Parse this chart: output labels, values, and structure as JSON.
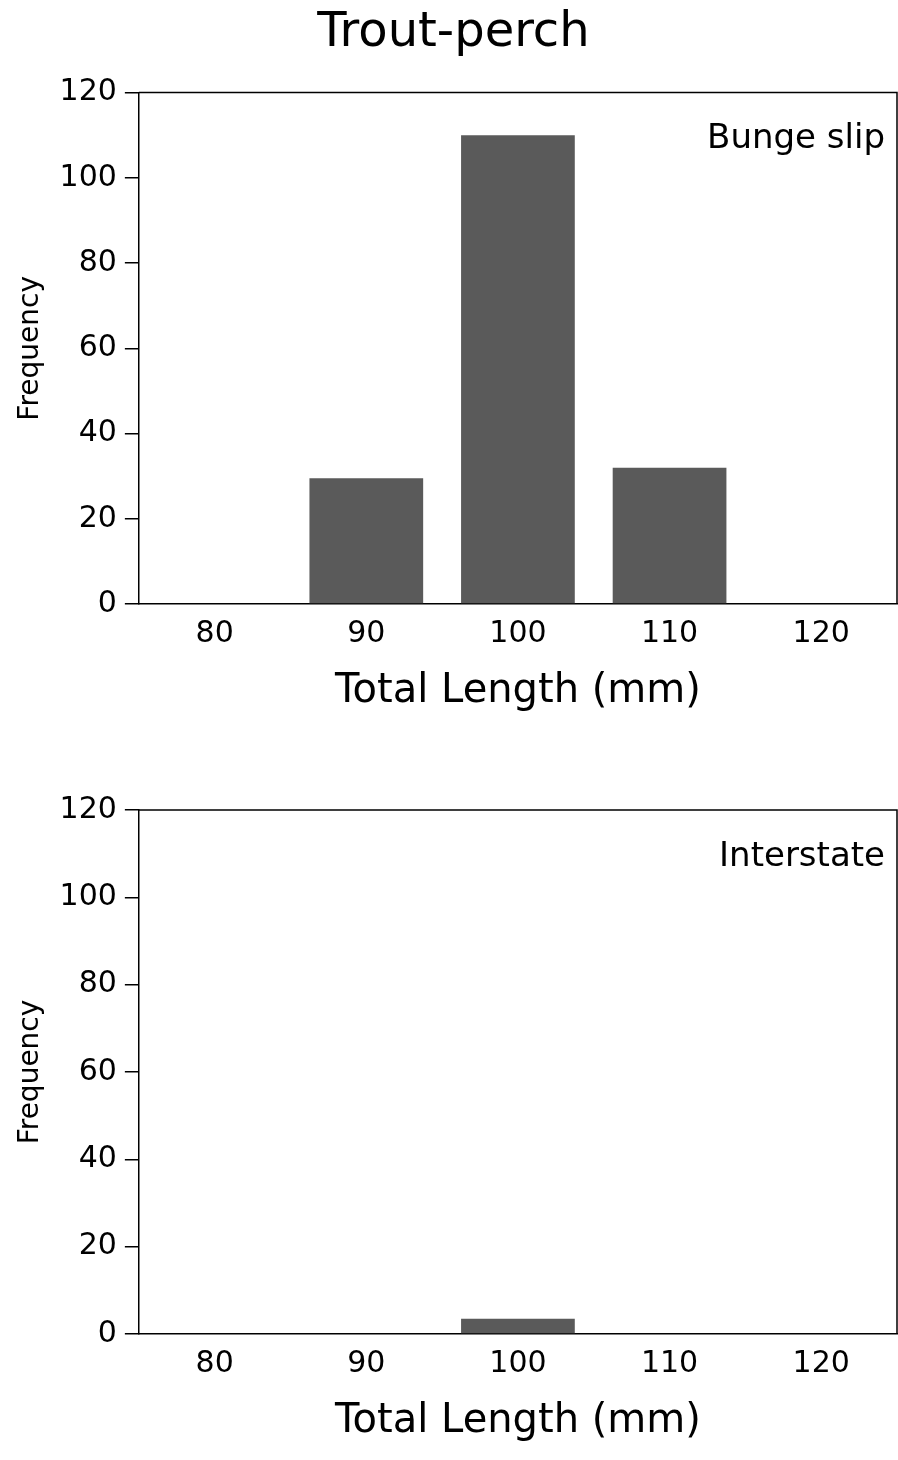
{
  "chart_data": [
    {
      "type": "bar",
      "title": "Trout-perch",
      "xlabel": "Total Length (mm)",
      "ylabel": "Frequency",
      "annotations": [
        "Bunge slip"
      ],
      "categories": [
        "80",
        "90",
        "100",
        "110",
        "120"
      ],
      "values": [
        0,
        29.5,
        110,
        32,
        0
      ],
      "color": "#5a5a5a",
      "ylim": [
        0,
        120
      ],
      "yticks": [
        0,
        20,
        40,
        60,
        80,
        100,
        120
      ],
      "grid": false,
      "legend": false
    },
    {
      "type": "bar",
      "xlabel": "Total Length (mm)",
      "ylabel": "Frequency",
      "annotations": [
        "Interstate"
      ],
      "categories": [
        "80",
        "90",
        "100",
        "110",
        "120"
      ],
      "values": [
        0,
        0,
        3.5,
        0,
        0
      ],
      "color": "#5a5a5a",
      "ylim": [
        0,
        120
      ],
      "yticks": [
        0,
        20,
        40,
        60,
        80,
        100,
        120
      ],
      "grid": false,
      "legend": false
    }
  ]
}
